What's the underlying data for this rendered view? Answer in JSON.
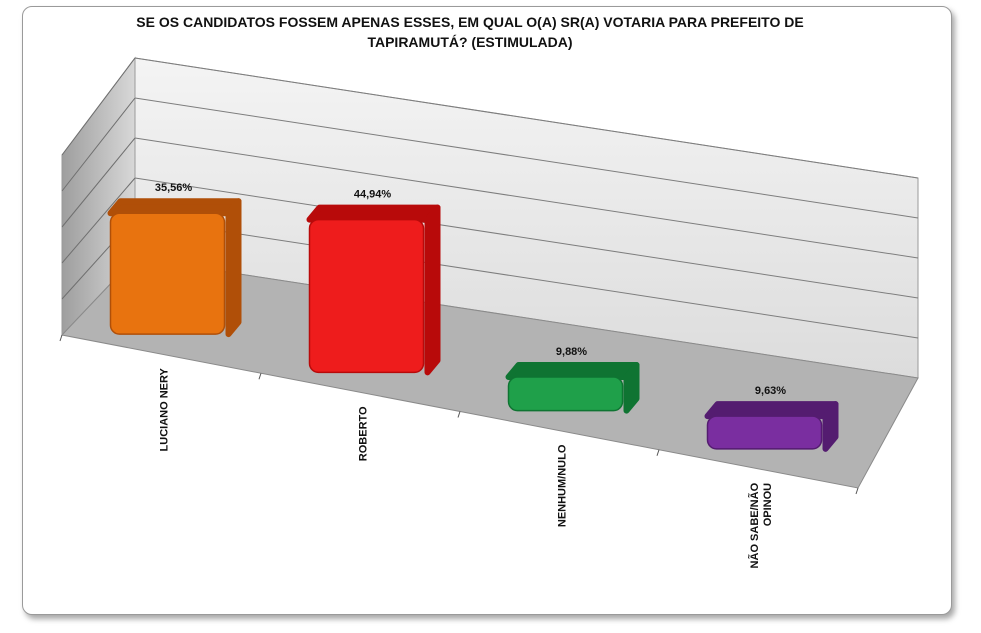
{
  "chart_data": {
    "type": "bar",
    "title_line1": "SE OS CANDIDATOS FOSSEM APENAS ESSES, EM QUAL O(A) SR(A) VOTARIA PARA PREFEITO DE",
    "title_line2": "TAPIRAMUTÁ? (ESTIMULADA)",
    "categories": [
      "LUCIANO NERY",
      "ROBERTO",
      "NENHUM/NULO",
      "NÃO SABE/NÃO OPINOU"
    ],
    "category_lines": [
      [
        "LUCIANO NERY"
      ],
      [
        "ROBERTO"
      ],
      [
        "NENHUM/NULO"
      ],
      [
        "NÃO SABE/NÃO",
        "OPINOU"
      ]
    ],
    "values": [
      35.56,
      44.94,
      9.88,
      9.63
    ],
    "value_labels": [
      "35,56%",
      "44,94%",
      "9,88%",
      "9,63%"
    ],
    "colors": [
      "#e8730f",
      "#ee1c1c",
      "#1fa04a",
      "#7a2ea0"
    ],
    "dark_colors": [
      "#b04f08",
      "#b80a0a",
      "#0f7432",
      "#541c70"
    ],
    "ylim": [
      0,
      50
    ],
    "grid": true,
    "legend": "none"
  }
}
